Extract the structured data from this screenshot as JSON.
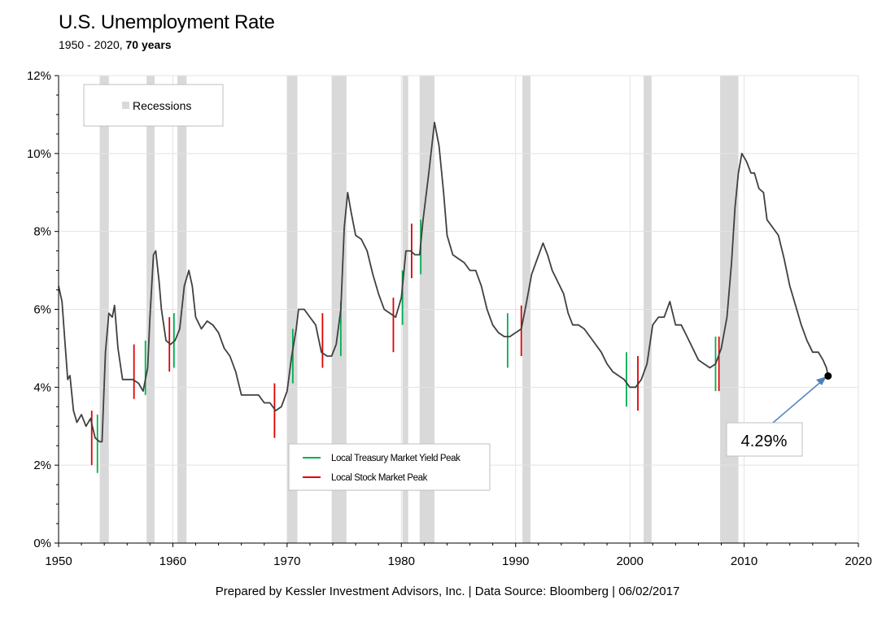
{
  "header": {
    "title": "U.S. Unemployment  Rate",
    "subtitle_range": "1950 - 2020, ",
    "subtitle_bold": "70 years"
  },
  "footer": "Prepared by Kessler Investment Advisors, Inc. | Data Source: Bloomberg | 06/02/2017",
  "colors": {
    "line": "#404040",
    "recession": "#d9d9d9",
    "treasury": "#00b050",
    "stock": "#e00000",
    "grid": "#e3e3e3",
    "arrow": "#4f81bd"
  },
  "chart_data": {
    "type": "line",
    "title": "U.S. Unemployment  Rate",
    "xlim": [
      1950,
      2020
    ],
    "ylim": [
      0,
      12
    ],
    "x_ticks": [
      1950,
      1960,
      1970,
      1980,
      1990,
      2000,
      2010,
      2020
    ],
    "y_ticks": [
      0,
      2,
      4,
      6,
      8,
      10,
      12
    ],
    "y_tick_labels": [
      "0%",
      "2%",
      "4%",
      "6%",
      "8%",
      "10%",
      "12%"
    ],
    "grid": "on",
    "legend_recessions": {
      "label": "Recessions",
      "placement": "top-left"
    },
    "legend_peaks": {
      "placement": "bottom-center",
      "entries": [
        "Local Treasury Market Yield Peak",
        "Local Stock Market Peak"
      ]
    },
    "recessions": [
      [
        1953.6,
        1954.4
      ],
      [
        1957.7,
        1958.4
      ],
      [
        1960.4,
        1961.2
      ],
      [
        1970.0,
        1970.9
      ],
      [
        1973.9,
        1975.2
      ],
      [
        1980.1,
        1980.6
      ],
      [
        1981.6,
        1982.9
      ],
      [
        1990.6,
        1991.3
      ],
      [
        2001.2,
        2001.9
      ],
      [
        2007.9,
        2009.5
      ]
    ],
    "series": [
      {
        "values": [
          [
            1950.0,
            6.6
          ],
          [
            1950.3,
            6.2
          ],
          [
            1950.6,
            5.0
          ],
          [
            1950.8,
            4.2
          ],
          [
            1951.0,
            4.3
          ],
          [
            1951.3,
            3.4
          ],
          [
            1951.6,
            3.1
          ],
          [
            1952.0,
            3.3
          ],
          [
            1952.4,
            3.0
          ],
          [
            1952.8,
            3.2
          ],
          [
            1953.2,
            2.7
          ],
          [
            1953.6,
            2.6
          ],
          [
            1953.8,
            2.6
          ],
          [
            1954.1,
            4.9
          ],
          [
            1954.4,
            5.9
          ],
          [
            1954.7,
            5.8
          ],
          [
            1954.9,
            6.1
          ],
          [
            1955.2,
            5.0
          ],
          [
            1955.6,
            4.2
          ],
          [
            1956.0,
            4.2
          ],
          [
            1956.5,
            4.2
          ],
          [
            1957.0,
            4.1
          ],
          [
            1957.4,
            3.9
          ],
          [
            1957.8,
            4.5
          ],
          [
            1958.0,
            5.8
          ],
          [
            1958.3,
            7.4
          ],
          [
            1958.5,
            7.5
          ],
          [
            1958.8,
            6.7
          ],
          [
            1959.0,
            6.0
          ],
          [
            1959.4,
            5.2
          ],
          [
            1959.8,
            5.1
          ],
          [
            1960.2,
            5.2
          ],
          [
            1960.6,
            5.5
          ],
          [
            1961.0,
            6.6
          ],
          [
            1961.4,
            7.0
          ],
          [
            1961.7,
            6.6
          ],
          [
            1962.0,
            5.8
          ],
          [
            1962.5,
            5.5
          ],
          [
            1963.0,
            5.7
          ],
          [
            1963.5,
            5.6
          ],
          [
            1964.0,
            5.4
          ],
          [
            1964.5,
            5.0
          ],
          [
            1965.0,
            4.8
          ],
          [
            1965.5,
            4.4
          ],
          [
            1966.0,
            3.8
          ],
          [
            1966.5,
            3.8
          ],
          [
            1967.0,
            3.8
          ],
          [
            1967.5,
            3.8
          ],
          [
            1968.0,
            3.6
          ],
          [
            1968.5,
            3.6
          ],
          [
            1969.0,
            3.4
          ],
          [
            1969.5,
            3.5
          ],
          [
            1970.0,
            3.9
          ],
          [
            1970.4,
            4.8
          ],
          [
            1970.8,
            5.5
          ],
          [
            1971.0,
            6.0
          ],
          [
            1971.5,
            6.0
          ],
          [
            1972.0,
            5.8
          ],
          [
            1972.5,
            5.6
          ],
          [
            1973.0,
            4.9
          ],
          [
            1973.5,
            4.8
          ],
          [
            1973.9,
            4.8
          ],
          [
            1974.3,
            5.1
          ],
          [
            1974.7,
            6.0
          ],
          [
            1975.0,
            8.1
          ],
          [
            1975.3,
            9.0
          ],
          [
            1975.6,
            8.5
          ],
          [
            1976.0,
            7.9
          ],
          [
            1976.5,
            7.8
          ],
          [
            1977.0,
            7.5
          ],
          [
            1977.5,
            6.9
          ],
          [
            1978.0,
            6.4
          ],
          [
            1978.5,
            6.0
          ],
          [
            1979.0,
            5.9
          ],
          [
            1979.5,
            5.8
          ],
          [
            1980.0,
            6.3
          ],
          [
            1980.4,
            7.5
          ],
          [
            1980.8,
            7.5
          ],
          [
            1981.2,
            7.4
          ],
          [
            1981.6,
            7.4
          ],
          [
            1981.9,
            8.3
          ],
          [
            1982.4,
            9.5
          ],
          [
            1982.9,
            10.8
          ],
          [
            1983.3,
            10.2
          ],
          [
            1983.7,
            9.0
          ],
          [
            1984.0,
            7.9
          ],
          [
            1984.5,
            7.4
          ],
          [
            1985.0,
            7.3
          ],
          [
            1985.5,
            7.2
          ],
          [
            1986.0,
            7.0
          ],
          [
            1986.5,
            7.0
          ],
          [
            1987.0,
            6.6
          ],
          [
            1987.5,
            6.0
          ],
          [
            1988.0,
            5.6
          ],
          [
            1988.5,
            5.4
          ],
          [
            1989.0,
            5.3
          ],
          [
            1989.5,
            5.3
          ],
          [
            1990.0,
            5.4
          ],
          [
            1990.5,
            5.5
          ],
          [
            1990.9,
            6.1
          ],
          [
            1991.4,
            6.9
          ],
          [
            1991.9,
            7.3
          ],
          [
            1992.4,
            7.7
          ],
          [
            1992.8,
            7.4
          ],
          [
            1993.2,
            7.0
          ],
          [
            1993.7,
            6.7
          ],
          [
            1994.2,
            6.4
          ],
          [
            1994.6,
            5.9
          ],
          [
            1995.0,
            5.6
          ],
          [
            1995.5,
            5.6
          ],
          [
            1996.0,
            5.5
          ],
          [
            1996.5,
            5.3
          ],
          [
            1997.0,
            5.1
          ],
          [
            1997.5,
            4.9
          ],
          [
            1998.0,
            4.6
          ],
          [
            1998.5,
            4.4
          ],
          [
            1999.0,
            4.3
          ],
          [
            1999.5,
            4.2
          ],
          [
            2000.0,
            4.0
          ],
          [
            2000.5,
            4.0
          ],
          [
            2001.0,
            4.2
          ],
          [
            2001.5,
            4.6
          ],
          [
            2002.0,
            5.6
          ],
          [
            2002.5,
            5.8
          ],
          [
            2003.0,
            5.8
          ],
          [
            2003.5,
            6.2
          ],
          [
            2004.0,
            5.6
          ],
          [
            2004.5,
            5.6
          ],
          [
            2005.0,
            5.3
          ],
          [
            2005.5,
            5.0
          ],
          [
            2006.0,
            4.7
          ],
          [
            2006.5,
            4.6
          ],
          [
            2007.0,
            4.5
          ],
          [
            2007.5,
            4.6
          ],
          [
            2008.0,
            5.0
          ],
          [
            2008.5,
            5.8
          ],
          [
            2008.9,
            7.2
          ],
          [
            2009.2,
            8.6
          ],
          [
            2009.5,
            9.5
          ],
          [
            2009.8,
            10.0
          ],
          [
            2010.2,
            9.8
          ],
          [
            2010.6,
            9.5
          ],
          [
            2010.9,
            9.5
          ],
          [
            2011.3,
            9.1
          ],
          [
            2011.7,
            9.0
          ],
          [
            2012.0,
            8.3
          ],
          [
            2012.5,
            8.1
          ],
          [
            2013.0,
            7.9
          ],
          [
            2013.5,
            7.3
          ],
          [
            2014.0,
            6.6
          ],
          [
            2014.5,
            6.1
          ],
          [
            2015.0,
            5.6
          ],
          [
            2015.5,
            5.2
          ],
          [
            2016.0,
            4.9
          ],
          [
            2016.5,
            4.9
          ],
          [
            2016.9,
            4.7
          ],
          [
            2017.2,
            4.5
          ],
          [
            2017.35,
            4.29
          ]
        ]
      }
    ],
    "treasury_yield_peaks": [
      [
        1953.4,
        1.8,
        3.3
      ],
      [
        1957.6,
        3.8,
        5.2
      ],
      [
        1960.1,
        4.5,
        5.9
      ],
      [
        1970.5,
        4.1,
        5.5
      ],
      [
        1974.7,
        4.8,
        6.2
      ],
      [
        1980.1,
        5.6,
        7.0
      ],
      [
        1981.7,
        6.9,
        8.3
      ],
      [
        1989.3,
        4.5,
        5.9
      ],
      [
        1999.7,
        3.5,
        4.9
      ],
      [
        2007.5,
        3.9,
        5.3
      ]
    ],
    "stock_market_peaks": [
      [
        1952.9,
        2.0,
        3.4
      ],
      [
        1956.6,
        3.7,
        5.1
      ],
      [
        1959.7,
        4.4,
        5.8
      ],
      [
        1968.9,
        2.7,
        4.1
      ],
      [
        1973.1,
        4.5,
        5.9
      ],
      [
        1979.3,
        4.9,
        6.3
      ],
      [
        1980.9,
        6.8,
        8.2
      ],
      [
        1990.5,
        4.8,
        6.1
      ],
      [
        2000.7,
        3.4,
        4.8
      ],
      [
        2007.8,
        3.9,
        5.3
      ]
    ],
    "annotation": {
      "label": "4.29%",
      "x": 2017.35,
      "y": 4.29
    }
  }
}
